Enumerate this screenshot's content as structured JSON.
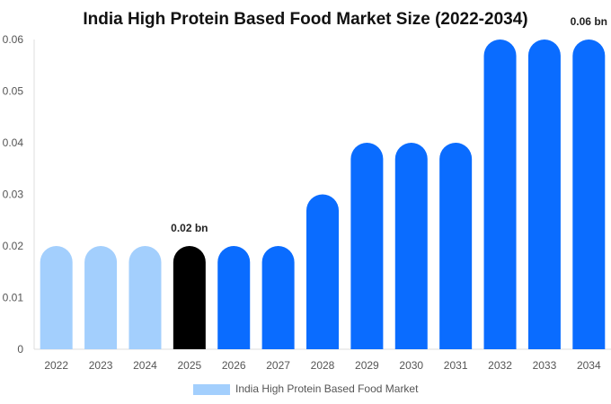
{
  "chart_data": {
    "type": "bar",
    "title": "India High Protein Based Food Market Size (2022-2034)",
    "categories": [
      "2022",
      "2023",
      "2024",
      "2025",
      "2026",
      "2027",
      "2028",
      "2029",
      "2030",
      "2031",
      "2032",
      "2033",
      "2034"
    ],
    "series": [
      {
        "name": "India High Protein Based Food Market",
        "values": [
          0.02,
          0.02,
          0.02,
          0.02,
          0.02,
          0.02,
          0.03,
          0.04,
          0.04,
          0.04,
          0.06,
          0.06,
          0.06
        ]
      }
    ],
    "bar_colors": [
      "#a3cffd",
      "#a3cffd",
      "#a3cffd",
      "#000000",
      "#0a6cff",
      "#0a6cff",
      "#0a6cff",
      "#0a6cff",
      "#0a6cff",
      "#0a6cff",
      "#0a6cff",
      "#0a6cff",
      "#0a6cff"
    ],
    "data_labels": [
      {
        "category": "2025",
        "text": "0.02 bn"
      },
      {
        "category": "2034",
        "text": "0.06 bn"
      }
    ],
    "yticks": [
      "0",
      "0.01",
      "0.02",
      "0.03",
      "0.04",
      "0.05",
      "0.06"
    ],
    "ylim": [
      0,
      0.06
    ],
    "grid": false,
    "legend_position": "bottom",
    "legend_color": "#a3cffd",
    "xlabel": "",
    "ylabel": ""
  }
}
